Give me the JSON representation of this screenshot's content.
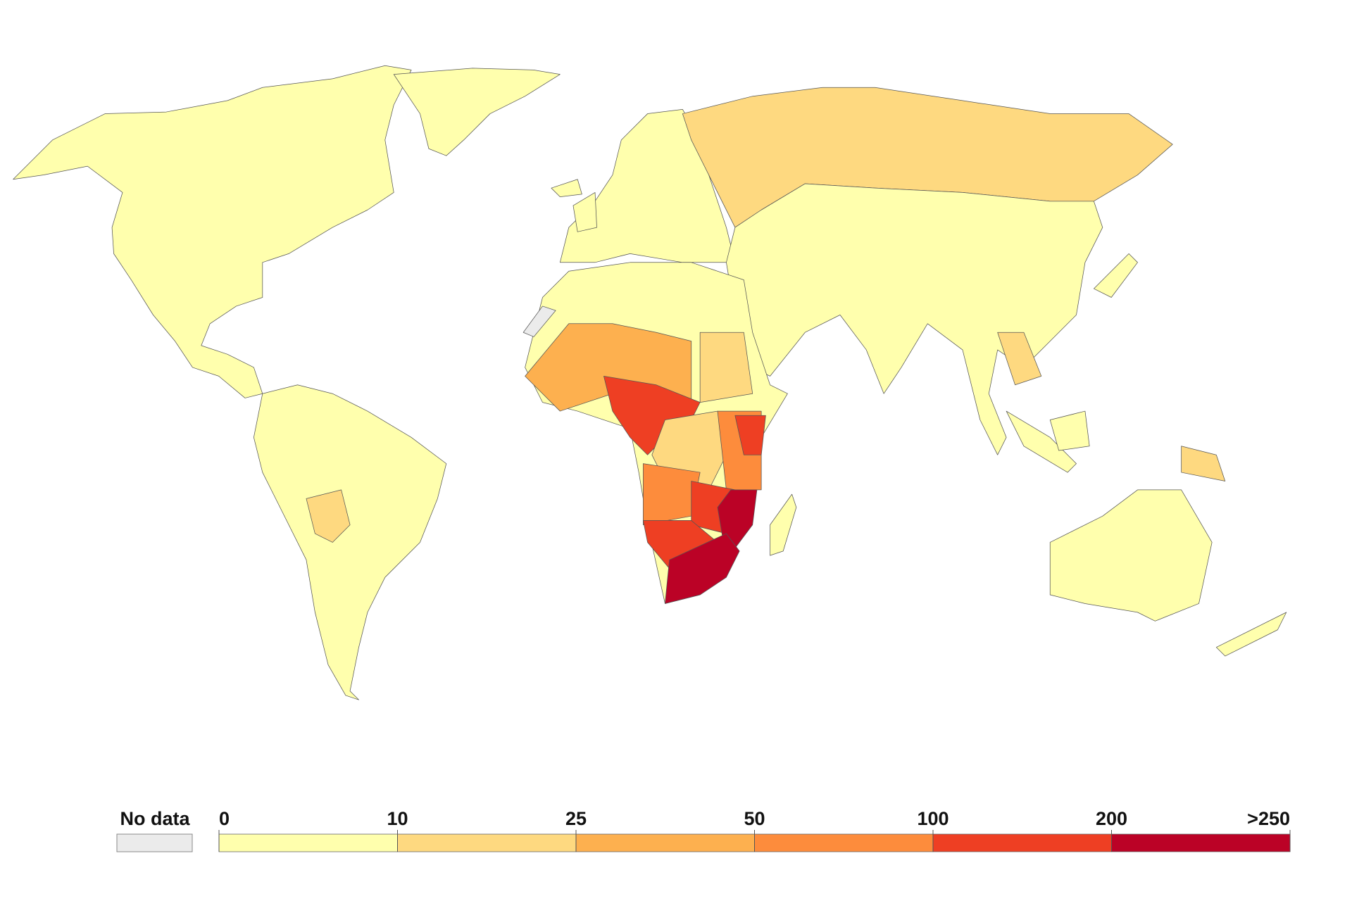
{
  "legend": {
    "no_data": {
      "label": "No data",
      "color": "#ebebeb"
    },
    "bins": [
      {
        "color": "#ffffad"
      },
      {
        "color": "#fed980"
      },
      {
        "color": "#fdb04f"
      },
      {
        "color": "#fd8c3c"
      },
      {
        "color": "#ee3f23"
      },
      {
        "color": "#bb0226"
      }
    ],
    "ticks": [
      0,
      10,
      25,
      50,
      100,
      200,
      {
        "value": 250,
        "label": ">250"
      }
    ]
  }
}
